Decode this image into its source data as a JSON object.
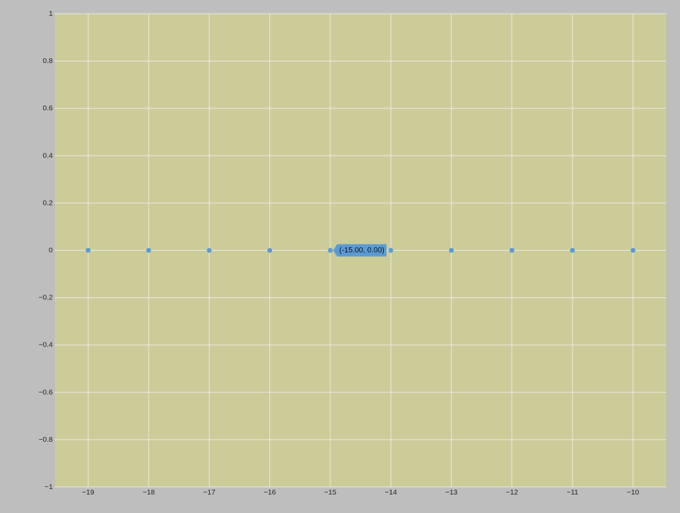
{
  "chart_data": {
    "type": "scatter",
    "x": [
      -19,
      -18,
      -17,
      -16,
      -15,
      -14,
      -13,
      -12,
      -11,
      -10
    ],
    "y": [
      0,
      0,
      0,
      0,
      0,
      0,
      0,
      0,
      0,
      0
    ],
    "xlim": [
      -19.55,
      -9.45
    ],
    "ylim": [
      -1,
      1
    ],
    "x_ticks": [
      -19,
      -18,
      -17,
      -16,
      -15,
      -14,
      -13,
      -12,
      -11,
      -10
    ],
    "x_tick_labels": [
      "−19",
      "−18",
      "−17",
      "−16",
      "−15",
      "−14",
      "−13",
      "−12",
      "−11",
      "−10"
    ],
    "y_ticks": [
      1,
      0.8,
      0.6,
      0.4,
      0.2,
      0,
      -0.2,
      -0.4,
      -0.6,
      -0.8,
      -1
    ],
    "y_tick_labels": [
      "1",
      "0.8",
      "0.6",
      "0.4",
      "0.2",
      "0",
      "−0.2",
      "−0.4",
      "−0.6",
      "−0.8",
      "−1"
    ],
    "grid": true,
    "title": "",
    "xlabel": "",
    "ylabel": "",
    "tooltip": {
      "text": "(-15.00, 0.00)",
      "x": -15,
      "y": 0
    }
  },
  "colors": {
    "page_background": "#bebebe",
    "plot_background": "#cccc99",
    "grid": "#ebebeb",
    "marker": "#5b9bd5",
    "tooltip_fill": "#5b9bd5",
    "tick_text": "#222222"
  }
}
